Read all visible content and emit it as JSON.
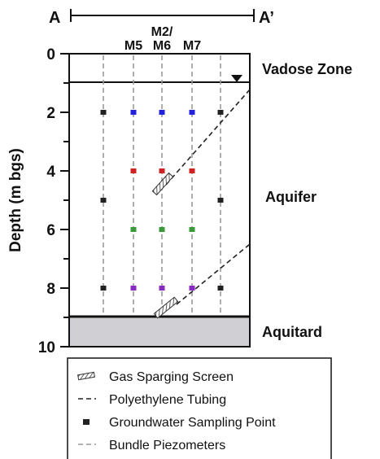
{
  "section": {
    "start_label": "A",
    "end_label": "A’"
  },
  "wells": {
    "group_label": "M2/",
    "labels": [
      "M5",
      "M6",
      "M7"
    ]
  },
  "axis": {
    "title": "Depth (m bgs)",
    "tick_labels": [
      "0",
      "2",
      "4",
      "6",
      "8",
      "10"
    ]
  },
  "zones": {
    "vadose": "Vadose Zone",
    "aquifer": "Aquifer",
    "aquitard": "Aquitard"
  },
  "legend": {
    "items": [
      {
        "icon": "gas-sparging-screen-icon",
        "label": "Gas Sparging Screen"
      },
      {
        "icon": "polyethylene-tubing-icon",
        "label": "Polyethylene Tubing"
      },
      {
        "icon": "groundwater-sampling-point-icon",
        "label": "Groundwater Sampling Point"
      },
      {
        "icon": "bundle-piezometers-icon",
        "label": "Bundle Piezometers"
      }
    ]
  },
  "colors": {
    "blue": "#2222dd",
    "red": "#cc2222",
    "green": "#3a9a3a",
    "purple": "#8a2bbf",
    "black": "#222222",
    "aquitard_fill": "#cfcfd4"
  },
  "sampling_points": [
    {
      "well": 0,
      "depth": 2,
      "color": "black"
    },
    {
      "well": 1,
      "depth": 2,
      "color": "blue"
    },
    {
      "well": 2,
      "depth": 2,
      "color": "blue"
    },
    {
      "well": 3,
      "depth": 2,
      "color": "blue"
    },
    {
      "well": 4,
      "depth": 2,
      "color": "black"
    },
    {
      "well": 1,
      "depth": 4,
      "color": "red"
    },
    {
      "well": 2,
      "depth": 4,
      "color": "red"
    },
    {
      "well": 3,
      "depth": 4,
      "color": "red"
    },
    {
      "well": 0,
      "depth": 5,
      "color": "black"
    },
    {
      "well": 4,
      "depth": 5,
      "color": "black"
    },
    {
      "well": 1,
      "depth": 6,
      "color": "green"
    },
    {
      "well": 2,
      "depth": 6,
      "color": "green"
    },
    {
      "well": 3,
      "depth": 6,
      "color": "green"
    },
    {
      "well": 0,
      "depth": 8,
      "color": "black"
    },
    {
      "well": 1,
      "depth": 8,
      "color": "purple"
    },
    {
      "well": 2,
      "depth": 8,
      "color": "purple"
    },
    {
      "well": 3,
      "depth": 8,
      "color": "purple"
    },
    {
      "well": 4,
      "depth": 8,
      "color": "black"
    }
  ]
}
